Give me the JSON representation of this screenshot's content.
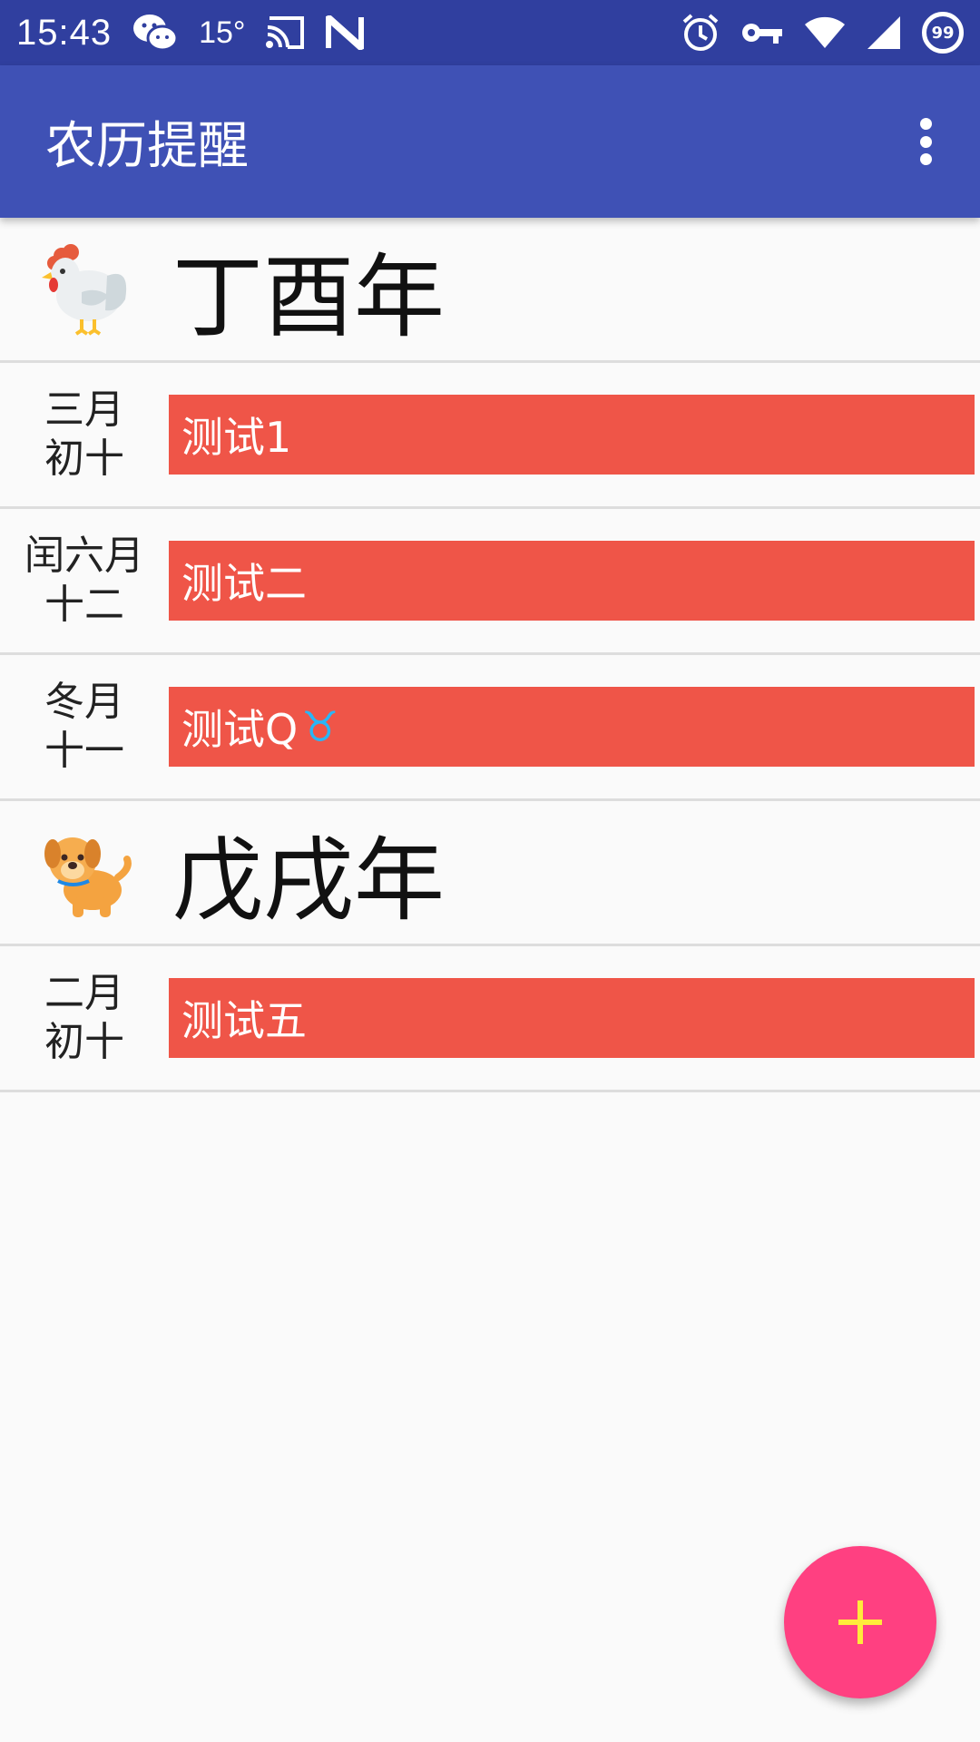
{
  "status_bar": {
    "time": "15:43",
    "temperature": "15°",
    "battery": "99",
    "icons": [
      "wechat-icon",
      "cast-icon",
      "n-icon",
      "alarm-icon",
      "vpn-key-icon",
      "wifi-icon",
      "signal-icon",
      "battery-icon"
    ]
  },
  "app_bar": {
    "title": "农历提醒",
    "menu_icon": "more-vert-icon"
  },
  "groups": [
    {
      "year": "丁酉年",
      "zodiac_icon": "rooster-icon",
      "events": [
        {
          "month": "三月",
          "day": "初十",
          "title": "测试1"
        },
        {
          "month": "闰六月",
          "day": "十二",
          "title": "测试二"
        },
        {
          "month": "冬月",
          "day": "十一",
          "title": "测试Q",
          "emoji": "♉"
        }
      ]
    },
    {
      "year": "戊戌年",
      "zodiac_icon": "dog-icon",
      "events": [
        {
          "month": "二月",
          "day": "初十",
          "title": "测试五"
        }
      ]
    }
  ],
  "fab": {
    "icon": "plus-icon"
  },
  "colors": {
    "status_bar": "#303f9f",
    "app_bar": "#3f51b5",
    "event_bar": "#ef5548",
    "fab": "#ff4081",
    "fab_icon": "#ffeb3b"
  }
}
